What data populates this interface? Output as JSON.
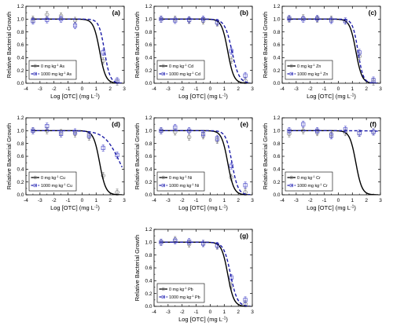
{
  "axis": {
    "xlabel_main": "Log [OTC] (mg L",
    "xlabel_sup": "-1",
    "xlabel_end": ")",
    "ylabel": "Relative Bacterial Growth",
    "xlim": [
      -4,
      3
    ],
    "ylim": [
      0,
      1.2
    ],
    "xticks": [
      "-4",
      "-3",
      "-2",
      "-1",
      "0",
      "1",
      "2",
      "3"
    ],
    "yticks": [
      "0.0",
      "0.2",
      "0.4",
      "0.6",
      "0.8",
      "1.0",
      "1.2"
    ]
  },
  "legend_common": {
    "prefix_0": "0 mg kg",
    "prefix_1000": "1000 mg kg",
    "sup": "-1"
  },
  "colors": {
    "control": "#000000",
    "metal": "#1a1aa6",
    "marker": "#7a7a7a",
    "metal_marker": "#4a4ac8"
  },
  "chart_data": [
    {
      "type": "line",
      "panel": "(a)",
      "metal": "As",
      "legend_position": "bottom-left",
      "series": [
        {
          "name": "0 mg kg-1 As",
          "curve": {
            "top": 1.0,
            "ec50": 1.25,
            "slope": 2.0
          },
          "points": [
            {
              "x": -3.5,
              "y": 1.0
            },
            {
              "x": -2.5,
              "y": 1.07
            },
            {
              "x": -1.5,
              "y": 1.05
            },
            {
              "x": -0.5,
              "y": 0.98
            },
            {
              "x": 1.5,
              "y": 0.35
            },
            {
              "x": 2.5,
              "y": 0.02
            }
          ]
        },
        {
          "name": "1000 mg kg-1 As",
          "curve": {
            "top": 1.0,
            "ec50": 1.6,
            "slope": 2.2
          },
          "points": [
            {
              "x": -3.5,
              "y": 0.97
            },
            {
              "x": -2.5,
              "y": 0.99
            },
            {
              "x": -1.5,
              "y": 1.0
            },
            {
              "x": -0.5,
              "y": 0.9
            },
            {
              "x": 1.5,
              "y": 0.48
            },
            {
              "x": 2.5,
              "y": 0.04
            }
          ]
        }
      ]
    },
    {
      "type": "line",
      "panel": "(b)",
      "metal": "Cd",
      "legend_position": "bottom-left",
      "series": [
        {
          "name": "0 mg kg-1 Cd",
          "curve": {
            "top": 1.0,
            "ec50": 1.25,
            "slope": 2.0
          },
          "points": [
            {
              "x": -3.5,
              "y": 1.0
            },
            {
              "x": -2.5,
              "y": 1.0
            },
            {
              "x": -1.5,
              "y": 0.98
            },
            {
              "x": -0.5,
              "y": 0.97
            },
            {
              "x": 0.5,
              "y": 0.94
            },
            {
              "x": 1.5,
              "y": 0.36
            },
            {
              "x": 2.5,
              "y": 0.04
            }
          ]
        },
        {
          "name": "1000 mg kg-1 Cd",
          "curve": {
            "top": 1.0,
            "ec50": 1.55,
            "slope": 1.7
          },
          "points": [
            {
              "x": -3.5,
              "y": 1.0
            },
            {
              "x": -2.5,
              "y": 0.98
            },
            {
              "x": -1.5,
              "y": 0.99
            },
            {
              "x": -0.5,
              "y": 1.0
            },
            {
              "x": 0.5,
              "y": 0.95
            },
            {
              "x": 1.5,
              "y": 0.5
            },
            {
              "x": 2.5,
              "y": 0.12
            }
          ]
        }
      ]
    },
    {
      "type": "line",
      "panel": "(c)",
      "metal": "Zn",
      "legend_position": "bottom-left",
      "series": [
        {
          "name": "0 mg kg-1 Zn",
          "curve": {
            "top": 1.0,
            "ec50": 1.25,
            "slope": 2.0
          },
          "points": [
            {
              "x": -3.5,
              "y": 1.0
            },
            {
              "x": -2.5,
              "y": 1.02
            },
            {
              "x": -1.5,
              "y": 1.0
            },
            {
              "x": -0.5,
              "y": 1.0
            },
            {
              "x": 0.5,
              "y": 0.97
            },
            {
              "x": 1.5,
              "y": 0.42
            },
            {
              "x": 2.5,
              "y": 0.02
            }
          ]
        },
        {
          "name": "1000 mg kg-1 Zn",
          "curve": {
            "top": 1.0,
            "ec50": 1.4,
            "slope": 2.3
          },
          "points": [
            {
              "x": -3.5,
              "y": 1.01
            },
            {
              "x": -2.5,
              "y": 1.0
            },
            {
              "x": -1.5,
              "y": 1.01
            },
            {
              "x": -0.5,
              "y": 0.98
            },
            {
              "x": 0.5,
              "y": 0.97
            },
            {
              "x": 1.5,
              "y": 0.48
            },
            {
              "x": 2.5,
              "y": 0.05
            }
          ]
        }
      ]
    },
    {
      "type": "line",
      "panel": "(d)",
      "metal": "Cu",
      "legend_position": "bottom-left",
      "series": [
        {
          "name": "0 mg kg-1 Cu",
          "curve": {
            "top": 1.0,
            "ec50": 1.25,
            "slope": 2.0
          },
          "points": [
            {
              "x": -3.5,
              "y": 1.0
            },
            {
              "x": -2.5,
              "y": 1.0
            },
            {
              "x": -1.5,
              "y": 0.97
            },
            {
              "x": -0.5,
              "y": 0.95
            },
            {
              "x": 0.5,
              "y": 0.9
            },
            {
              "x": 1.5,
              "y": 0.3
            },
            {
              "x": 2.5,
              "y": 0.04
            }
          ]
        },
        {
          "name": "1000 mg kg-1 Cu",
          "curve": {
            "top": 1.0,
            "ec50": 2.7,
            "slope": 0.8
          },
          "points": [
            {
              "x": -3.5,
              "y": 1.0
            },
            {
              "x": -2.5,
              "y": 1.07
            },
            {
              "x": -1.5,
              "y": 0.95
            },
            {
              "x": -0.5,
              "y": 0.98
            },
            {
              "x": 0.5,
              "y": 0.93
            },
            {
              "x": 1.5,
              "y": 0.73
            },
            {
              "x": 2.5,
              "y": 0.62
            }
          ]
        }
      ]
    },
    {
      "type": "line",
      "panel": "(e)",
      "metal": "Ni",
      "legend_position": "bottom-left",
      "series": [
        {
          "name": "0 mg kg-1 Ni",
          "curve": {
            "top": 1.0,
            "ec50": 1.25,
            "slope": 2.0
          },
          "points": [
            {
              "x": -3.5,
              "y": 1.0
            },
            {
              "x": -2.5,
              "y": 0.98
            },
            {
              "x": -1.5,
              "y": 0.9
            },
            {
              "x": -0.5,
              "y": 0.92
            },
            {
              "x": 0.5,
              "y": 0.85
            },
            {
              "x": 1.5,
              "y": 0.27
            },
            {
              "x": 2.5,
              "y": 0.04
            }
          ]
        },
        {
          "name": "1000 mg kg-1 Ni",
          "curve": {
            "top": 1.0,
            "ec50": 1.55,
            "slope": 2.0
          },
          "points": [
            {
              "x": -3.5,
              "y": 1.0
            },
            {
              "x": -2.5,
              "y": 1.05
            },
            {
              "x": -1.5,
              "y": 1.0
            },
            {
              "x": -0.5,
              "y": 0.95
            },
            {
              "x": 0.5,
              "y": 0.88
            },
            {
              "x": 1.5,
              "y": 0.45
            },
            {
              "x": 2.5,
              "y": 0.15
            }
          ]
        }
      ]
    },
    {
      "type": "line",
      "panel": "(f)",
      "metal": "Cr",
      "legend_position": "bottom-left",
      "series": [
        {
          "name": "0 mg kg-1 Cr",
          "curve": {
            "top": 1.0,
            "ec50": 1.25,
            "slope": 2.0
          },
          "points": [
            {
              "x": -3.5,
              "y": 0.95
            },
            {
              "x": -2.5,
              "y": 1.0
            },
            {
              "x": -1.5,
              "y": 0.97
            },
            {
              "x": -0.5,
              "y": 0.95
            },
            {
              "x": 0.5,
              "y": 0.97
            },
            {
              "x": 1.5,
              "y": 0.96
            },
            {
              "x": 2.5,
              "y": 0.98
            }
          ]
        },
        {
          "name": "1000 mg kg-1 Cr",
          "curve": {
            "top": 1.0,
            "ec50": 7.0,
            "slope": 0.5
          },
          "points": [
            {
              "x": -3.5,
              "y": 1.0
            },
            {
              "x": -2.5,
              "y": 1.1
            },
            {
              "x": -1.5,
              "y": 1.0
            },
            {
              "x": -0.5,
              "y": 0.92
            },
            {
              "x": 0.5,
              "y": 1.02
            },
            {
              "x": 1.5,
              "y": 0.96
            },
            {
              "x": 2.5,
              "y": 0.98
            }
          ]
        }
      ]
    },
    {
      "type": "line",
      "panel": "(g)",
      "metal": "Pb",
      "legend_position": "bottom-left",
      "series": [
        {
          "name": "0 mg kg-1 Pb",
          "curve": {
            "top": 1.0,
            "ec50": 1.25,
            "slope": 2.0
          },
          "points": [
            {
              "x": -3.5,
              "y": 1.0
            },
            {
              "x": -2.5,
              "y": 1.04
            },
            {
              "x": -1.5,
              "y": 0.97
            },
            {
              "x": -0.5,
              "y": 0.98
            },
            {
              "x": 0.5,
              "y": 0.94
            },
            {
              "x": 1.5,
              "y": 0.32
            },
            {
              "x": 2.5,
              "y": 0.04
            }
          ]
        },
        {
          "name": "1000 mg kg-1 Pb",
          "curve": {
            "top": 1.0,
            "ec50": 1.45,
            "slope": 1.8
          },
          "points": [
            {
              "x": -3.5,
              "y": 1.0
            },
            {
              "x": -2.5,
              "y": 1.02
            },
            {
              "x": -1.5,
              "y": 1.01
            },
            {
              "x": -0.5,
              "y": 0.98
            },
            {
              "x": 0.5,
              "y": 0.95
            },
            {
              "x": 1.5,
              "y": 0.45
            },
            {
              "x": 2.5,
              "y": 0.1
            }
          ]
        }
      ]
    }
  ]
}
